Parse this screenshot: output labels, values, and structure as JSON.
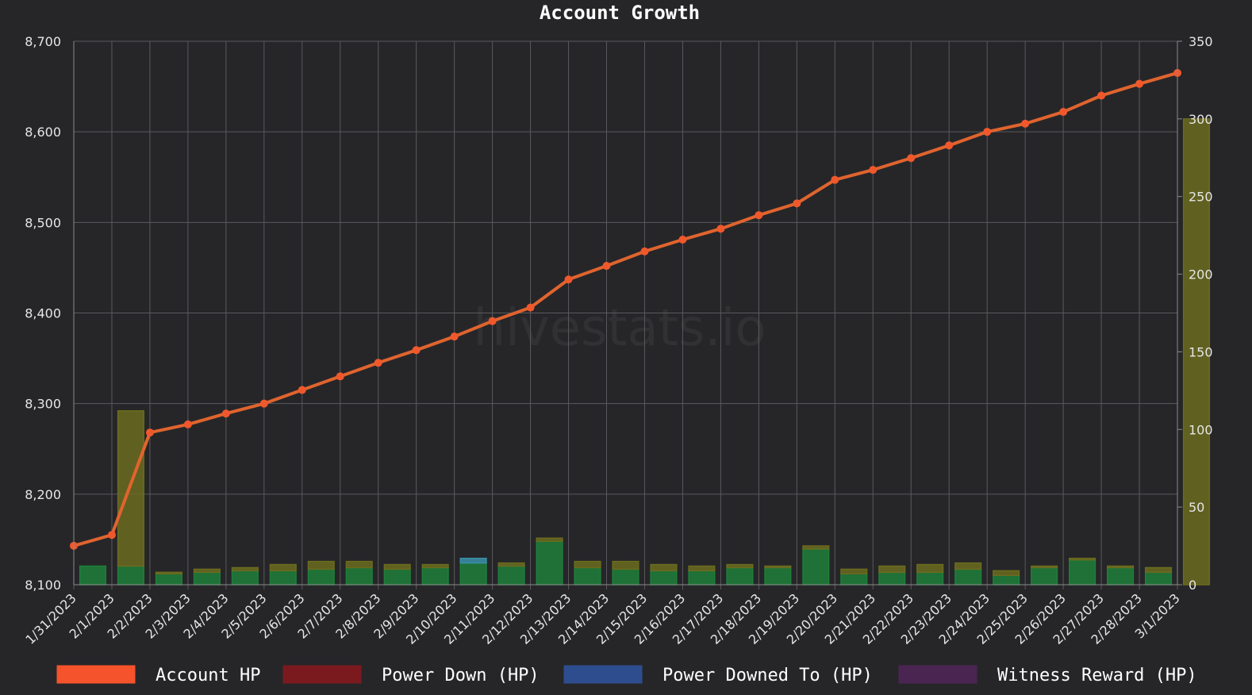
{
  "watermark": "hivestats.io",
  "chart_data": {
    "type": "bar",
    "title": "Account Growth",
    "x": [
      "1/31/2023",
      "2/1/2023",
      "2/2/2023",
      "2/3/2023",
      "2/4/2023",
      "2/5/2023",
      "2/6/2023",
      "2/7/2023",
      "2/8/2023",
      "2/9/2023",
      "2/10/2023",
      "2/11/2023",
      "2/12/2023",
      "2/13/2023",
      "2/14/2023",
      "2/15/2023",
      "2/16/2023",
      "2/17/2023",
      "2/18/2023",
      "2/19/2023",
      "2/20/2023",
      "2/21/2023",
      "2/22/2023",
      "2/23/2023",
      "2/24/2023",
      "2/25/2023",
      "2/26/2023",
      "2/27/2023",
      "2/28/2023",
      "3/1/2023"
    ],
    "y_left": {
      "ticks": [
        8100,
        8200,
        8300,
        8400,
        8500,
        8600,
        8700
      ],
      "tick_labels": [
        "8,100",
        "8,200",
        "8,300",
        "8,400",
        "8,500",
        "8,600",
        "8,700"
      ],
      "ylim": [
        8100,
        8700
      ]
    },
    "y_right": {
      "ticks": [
        0,
        50,
        100,
        150,
        200,
        250,
        300,
        350
      ],
      "tick_labels": [
        "0",
        "50",
        "100",
        "150",
        "200",
        "250",
        "300",
        "350"
      ],
      "ylim": [
        0,
        350
      ]
    },
    "grid": true,
    "legend_position": "bottom",
    "legend": [
      {
        "name": "Account HP",
        "color": "#f4532b"
      },
      {
        "name": "Power Down (HP)",
        "color": "#7a1a1f"
      },
      {
        "name": "Power Downed To (HP)",
        "color": "#2e4d8e"
      },
      {
        "name": "Witness Reward (HP)",
        "color": "#4a2552"
      }
    ],
    "series": [
      {
        "name": "Account HP",
        "type": "line",
        "axis": "left",
        "color": "#e0642e",
        "values": [
          8143,
          8155,
          8268,
          8277,
          8289,
          8300,
          8315,
          8330,
          8345,
          8359,
          8374,
          8391,
          8406,
          8437,
          8452,
          8468,
          8481,
          8493,
          8508,
          8521,
          8547,
          8558,
          8571,
          8585,
          8600,
          8609,
          8622,
          8640,
          8653,
          8665
        ]
      },
      {
        "type": "bar",
        "axis": "right",
        "color": "#1e7f3a",
        "values": [
          12,
          12,
          7,
          8,
          9,
          9,
          10,
          11,
          10,
          11,
          14,
          12,
          28,
          11,
          10,
          9,
          9,
          11,
          11,
          23,
          7,
          8,
          8,
          10,
          6,
          11,
          16,
          11,
          8,
          0
        ]
      },
      {
        "type": "bar",
        "axis": "right",
        "color": "#6b6b1f",
        "values": [
          0,
          100,
          1,
          2,
          2,
          4,
          5,
          4,
          3,
          2,
          0,
          2,
          2,
          4,
          5,
          4,
          3,
          2,
          1,
          2,
          3,
          4,
          5,
          4,
          3,
          1,
          1,
          1,
          3,
          300
        ]
      },
      {
        "type": "bar",
        "axis": "right",
        "color": "#3a8fa8",
        "values": [
          0,
          0,
          0,
          0,
          0,
          0,
          0,
          0,
          0,
          0,
          3,
          0,
          0,
          0,
          0,
          0,
          0,
          0,
          0,
          0,
          0,
          0,
          0,
          0,
          0,
          0,
          0,
          0,
          0,
          0
        ]
      }
    ]
  }
}
